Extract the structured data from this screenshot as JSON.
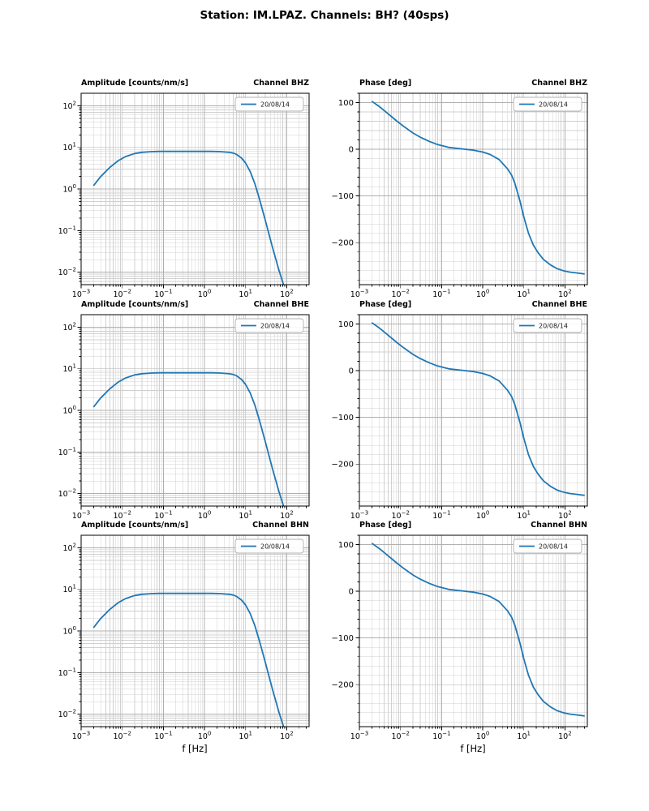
{
  "figure": {
    "title": "Station: IM.LPAZ. Channels: BH? (40sps)",
    "xlabel": "f [Hz]",
    "line_color": "#1f77b4",
    "legend_label": "20/08/14",
    "grid_major_color": "#b0b0b0",
    "grid_minor_color": "#d0d0d0"
  },
  "chart_data": [
    {
      "type": "line",
      "title_left": "Amplitude [counts/nm/s]",
      "title_right": "Channel BHZ",
      "legend": "20/08/14",
      "color": "#1f77b4",
      "xscale": "log",
      "yscale": "log",
      "xlim": [
        0.001,
        350
      ],
      "ylim": [
        0.005,
        200
      ],
      "xticks": [
        0.001,
        0.01,
        0.1,
        1,
        10,
        100
      ],
      "yticks": [
        100,
        10,
        1,
        0.1,
        0.01
      ],
      "grid": "both",
      "x": [
        0.002,
        0.003,
        0.005,
        0.008,
        0.012,
        0.02,
        0.03,
        0.05,
        0.08,
        0.15,
        0.3,
        0.6,
        1,
        1.5,
        2.5,
        4,
        5,
        6,
        8,
        10,
        13,
        17,
        22,
        30,
        45,
        65,
        90
      ],
      "y": [
        1.2,
        2.0,
        3.3,
        4.8,
        6.0,
        7.1,
        7.6,
        7.9,
        8.0,
        8.0,
        8.0,
        8.0,
        8.0,
        8.0,
        7.9,
        7.6,
        7.3,
        6.8,
        5.5,
        4.2,
        2.6,
        1.3,
        0.55,
        0.18,
        0.04,
        0.011,
        0.004
      ]
    },
    {
      "type": "line",
      "title_left": "Phase [deg]",
      "title_right": "Channel BHZ",
      "legend": "20/08/14",
      "color": "#1f77b4",
      "xscale": "log",
      "yscale": "linear",
      "xlim": [
        0.001,
        350
      ],
      "ylim": [
        -290,
        120
      ],
      "xticks": [
        0.001,
        0.01,
        0.1,
        1,
        10,
        100
      ],
      "yticks": [
        100,
        0,
        -100,
        -200
      ],
      "y_minor": 20,
      "grid": "both",
      "x": [
        0.002,
        0.003,
        0.005,
        0.008,
        0.012,
        0.02,
        0.03,
        0.05,
        0.08,
        0.15,
        0.3,
        0.6,
        1,
        1.5,
        2.5,
        4,
        5,
        6,
        8,
        10,
        13,
        17,
        22,
        30,
        45,
        65,
        90,
        130,
        200,
        300
      ],
      "y": [
        103,
        92,
        76,
        61,
        49,
        35,
        26,
        17,
        10,
        4,
        1,
        -2,
        -6,
        -11,
        -22,
        -42,
        -55,
        -72,
        -110,
        -145,
        -180,
        -205,
        -221,
        -236,
        -248,
        -256,
        -260,
        -263,
        -265,
        -267
      ]
    },
    {
      "type": "line",
      "title_left": "Amplitude [counts/nm/s]",
      "title_right": "Channel BHE",
      "legend": "20/08/14",
      "color": "#1f77b4",
      "xscale": "log",
      "yscale": "log",
      "xlim": [
        0.001,
        350
      ],
      "ylim": [
        0.005,
        200
      ],
      "xticks": [
        0.001,
        0.01,
        0.1,
        1,
        10,
        100
      ],
      "yticks": [
        100,
        10,
        1,
        0.1,
        0.01
      ],
      "grid": "both",
      "x": [
        0.002,
        0.003,
        0.005,
        0.008,
        0.012,
        0.02,
        0.03,
        0.05,
        0.08,
        0.15,
        0.3,
        0.6,
        1,
        1.5,
        2.5,
        4,
        5,
        6,
        8,
        10,
        13,
        17,
        22,
        30,
        45,
        65,
        90
      ],
      "y": [
        1.2,
        2.0,
        3.3,
        4.8,
        6.0,
        7.1,
        7.6,
        7.9,
        8.0,
        8.0,
        8.0,
        8.0,
        8.0,
        8.0,
        7.9,
        7.6,
        7.3,
        6.8,
        5.5,
        4.2,
        2.6,
        1.3,
        0.55,
        0.18,
        0.04,
        0.011,
        0.004
      ]
    },
    {
      "type": "line",
      "title_left": "Phase [deg]",
      "title_right": "Channel BHE",
      "legend": "20/08/14",
      "color": "#1f77b4",
      "xscale": "log",
      "yscale": "linear",
      "xlim": [
        0.001,
        350
      ],
      "ylim": [
        -290,
        120
      ],
      "xticks": [
        0.001,
        0.01,
        0.1,
        1,
        10,
        100
      ],
      "yticks": [
        100,
        0,
        -100,
        -200
      ],
      "y_minor": 20,
      "grid": "both",
      "x": [
        0.002,
        0.003,
        0.005,
        0.008,
        0.012,
        0.02,
        0.03,
        0.05,
        0.08,
        0.15,
        0.3,
        0.6,
        1,
        1.5,
        2.5,
        4,
        5,
        6,
        8,
        10,
        13,
        17,
        22,
        30,
        45,
        65,
        90,
        130,
        200,
        300
      ],
      "y": [
        103,
        92,
        76,
        61,
        49,
        35,
        26,
        17,
        10,
        4,
        1,
        -2,
        -6,
        -11,
        -22,
        -42,
        -55,
        -72,
        -110,
        -145,
        -180,
        -205,
        -221,
        -236,
        -248,
        -256,
        -260,
        -263,
        -265,
        -267
      ]
    },
    {
      "type": "line",
      "title_left": "Amplitude [counts/nm/s]",
      "title_right": "Channel BHN",
      "legend": "20/08/14",
      "color": "#1f77b4",
      "xscale": "log",
      "yscale": "log",
      "xlim": [
        0.001,
        350
      ],
      "ylim": [
        0.005,
        200
      ],
      "xticks": [
        0.001,
        0.01,
        0.1,
        1,
        10,
        100
      ],
      "yticks": [
        100,
        10,
        1,
        0.1,
        0.01
      ],
      "grid": "both",
      "x": [
        0.002,
        0.003,
        0.005,
        0.008,
        0.012,
        0.02,
        0.03,
        0.05,
        0.08,
        0.15,
        0.3,
        0.6,
        1,
        1.5,
        2.5,
        4,
        5,
        6,
        8,
        10,
        13,
        17,
        22,
        30,
        45,
        65,
        90
      ],
      "y": [
        1.2,
        2.0,
        3.3,
        4.8,
        6.0,
        7.1,
        7.6,
        7.9,
        8.0,
        8.0,
        8.0,
        8.0,
        8.0,
        8.0,
        7.9,
        7.6,
        7.3,
        6.8,
        5.5,
        4.2,
        2.6,
        1.3,
        0.55,
        0.18,
        0.04,
        0.011,
        0.004
      ]
    },
    {
      "type": "line",
      "title_left": "Phase [deg]",
      "title_right": "Channel BHN",
      "legend": "20/08/14",
      "color": "#1f77b4",
      "xscale": "log",
      "yscale": "linear",
      "xlim": [
        0.001,
        350
      ],
      "ylim": [
        -290,
        120
      ],
      "xticks": [
        0.001,
        0.01,
        0.1,
        1,
        10,
        100
      ],
      "yticks": [
        100,
        0,
        -100,
        -200
      ],
      "y_minor": 20,
      "grid": "both",
      "x": [
        0.002,
        0.003,
        0.005,
        0.008,
        0.012,
        0.02,
        0.03,
        0.05,
        0.08,
        0.15,
        0.3,
        0.6,
        1,
        1.5,
        2.5,
        4,
        5,
        6,
        8,
        10,
        13,
        17,
        22,
        30,
        45,
        65,
        90,
        130,
        200,
        300
      ],
      "y": [
        103,
        92,
        76,
        61,
        49,
        35,
        26,
        17,
        10,
        4,
        1,
        -2,
        -6,
        -11,
        -22,
        -42,
        -55,
        -72,
        -110,
        -145,
        -180,
        -205,
        -221,
        -236,
        -248,
        -256,
        -260,
        -263,
        -265,
        -267
      ]
    }
  ]
}
